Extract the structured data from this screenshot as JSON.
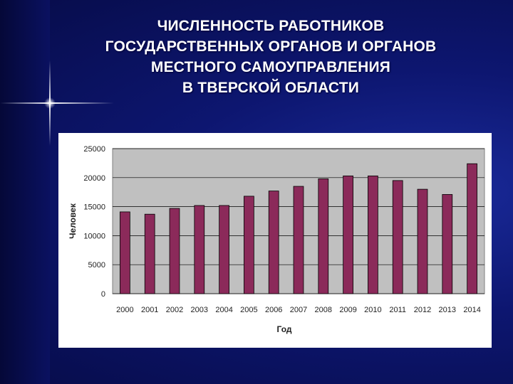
{
  "slide": {
    "title_lines": [
      "ЧИСЛЕННОСТЬ РАБОТНИКОВ",
      "ГОСУДАРСТВЕННЫХ ОРГАНОВ И ОРГАНОВ",
      "МЕСТНОГО САМОУПРАВЛЕНИЯ",
      "В ТВЕРСКОЙ ОБЛАСТИ"
    ]
  },
  "colors": {
    "bar": "#8b2a5a",
    "plot_bg": "#c0c0c0",
    "grid": "#000000"
  },
  "chart_data": {
    "type": "bar",
    "title": "",
    "xlabel": "Год",
    "ylabel": "Человек",
    "ylim": [
      0,
      25000
    ],
    "yticks": [
      0,
      5000,
      10000,
      15000,
      20000,
      25000
    ],
    "grid": true,
    "legend": "none",
    "categories": [
      "2000",
      "2001",
      "2002",
      "2003",
      "2004",
      "2005",
      "2006",
      "2007",
      "2008",
      "2009",
      "2010",
      "2011",
      "2012",
      "2013",
      "2014"
    ],
    "values": [
      14100,
      13700,
      14700,
      15200,
      15200,
      16800,
      17700,
      18500,
      19800,
      20300,
      20300,
      19500,
      18000,
      17100,
      22400
    ]
  }
}
